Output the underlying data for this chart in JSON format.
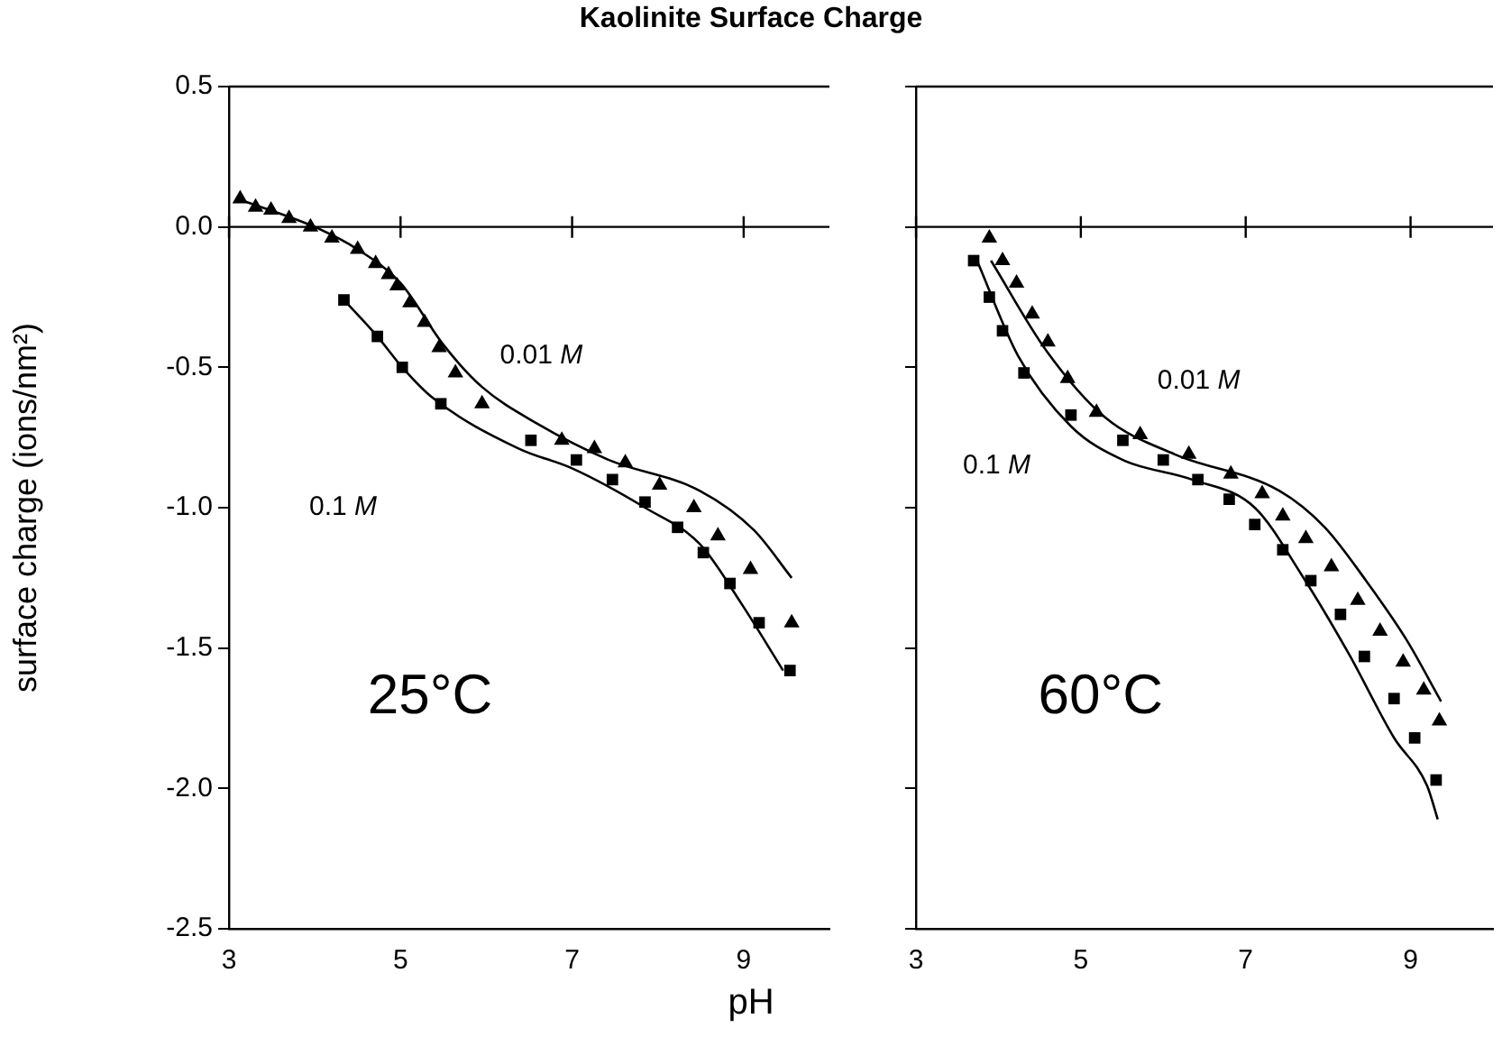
{
  "chart_data": [
    {
      "type": "scatter",
      "title": "Kaolinite Surface Charge",
      "xlabel": "pH",
      "ylabel": "surface charge (ions/nm²)",
      "xlim": [
        3,
        10
      ],
      "ylim": [
        -2.5,
        0.5
      ],
      "xticks": [
        3,
        5,
        7,
        9
      ],
      "yticks": [
        0.5,
        {
          "value": 0,
          "label": "0.0"
        },
        -0.5,
        {
          "value": -1,
          "label": "-1.0"
        },
        -1.5,
        {
          "value": -2,
          "label": "-2.0"
        },
        -2.5
      ],
      "grid": false,
      "legend": false,
      "ref_lines": [
        {
          "axis": "y",
          "value": 0,
          "color": "#000000"
        }
      ],
      "annotations": [
        "0.01 M",
        "0.1 M",
        "25°C"
      ],
      "series": [
        {
          "type": "scatter",
          "marker": "triangle",
          "color": "#000000",
          "x": [
            3.13,
            3.31,
            3.49,
            3.7,
            3.95,
            4.2,
            4.5,
            4.71,
            4.86,
            4.96,
            5.11,
            5.28,
            5.45,
            5.64,
            5.95,
            6.88,
            7.26,
            7.62,
            8.02,
            8.42,
            8.7,
            9.08,
            9.56
          ],
          "values": [
            0.1,
            0.07,
            0.06,
            0.03,
            0.0,
            -0.04,
            -0.08,
            -0.13,
            -0.17,
            -0.21,
            -0.27,
            -0.34,
            -0.43,
            -0.52,
            -0.63,
            -0.76,
            -0.79,
            -0.84,
            -0.92,
            -1.0,
            -1.1,
            -1.22,
            -1.41
          ]
        },
        {
          "type": "scatter",
          "marker": "square",
          "color": "#000000",
          "x": [
            4.34,
            4.73,
            5.02,
            5.47,
            6.52,
            7.05,
            7.47,
            7.85,
            8.23,
            8.53,
            8.84,
            9.18,
            9.54
          ],
          "values": [
            -0.26,
            -0.39,
            -0.5,
            -0.63,
            -0.76,
            -0.83,
            -0.9,
            -0.98,
            -1.07,
            -1.16,
            -1.27,
            -1.41,
            -1.58
          ]
        },
        {
          "type": "line",
          "color": "#000000",
          "x": [
            3.1,
            4.0,
            4.5,
            5.0,
            5.5,
            5.95,
            6.59,
            7.43,
            8.49,
            9.12,
            9.56
          ],
          "values": [
            0.1,
            0.0,
            -0.08,
            -0.2,
            -0.42,
            -0.57,
            -0.7,
            -0.83,
            -0.94,
            -1.08,
            -1.25
          ]
        },
        {
          "type": "line",
          "color": "#000000",
          "x": [
            4.34,
            4.73,
            5.02,
            5.38,
            6.38,
            7.0,
            7.85,
            8.49,
            8.97,
            9.46
          ],
          "values": [
            -0.26,
            -0.39,
            -0.5,
            -0.61,
            -0.79,
            -0.86,
            -1.0,
            -1.13,
            -1.34,
            -1.58
          ]
        }
      ]
    },
    {
      "type": "scatter",
      "xlim": [
        3,
        10
      ],
      "ylim": [
        -2.5,
        0.5
      ],
      "xticks": [
        3,
        5,
        7,
        9
      ],
      "yticks": [
        0.5,
        0,
        -0.5,
        -1,
        -1.5,
        -2,
        -2.5
      ],
      "tick_labels": "x",
      "grid": false,
      "legend": false,
      "ref_lines": [
        {
          "axis": "y",
          "value": 0,
          "color": "#000000"
        }
      ],
      "annotations": [
        "0.01 M",
        "0.1 M",
        "60°C"
      ],
      "series": [
        {
          "type": "scatter",
          "marker": "triangle",
          "color": "#000000",
          "x": [
            3.89,
            4.05,
            4.22,
            4.41,
            4.6,
            4.84,
            5.19,
            5.72,
            6.31,
            6.82,
            7.2,
            7.45,
            7.73,
            8.04,
            8.36,
            8.63,
            8.91,
            9.16,
            9.35
          ],
          "values": [
            -0.04,
            -0.12,
            -0.2,
            -0.31,
            -0.41,
            -0.54,
            -0.66,
            -0.74,
            -0.81,
            -0.88,
            -0.95,
            -1.03,
            -1.11,
            -1.21,
            -1.33,
            -1.44,
            -1.55,
            -1.65,
            -1.76
          ]
        },
        {
          "type": "scatter",
          "marker": "square",
          "color": "#000000",
          "x": [
            3.7,
            3.89,
            4.05,
            4.31,
            4.88,
            5.51,
            6.0,
            6.42,
            6.8,
            7.11,
            7.45,
            7.79,
            8.15,
            8.44,
            8.8,
            9.05,
            9.31
          ],
          "values": [
            -0.12,
            -0.25,
            -0.37,
            -0.52,
            -0.67,
            -0.76,
            -0.83,
            -0.9,
            -0.97,
            -1.06,
            -1.15,
            -1.26,
            -1.38,
            -1.53,
            -1.68,
            -1.82,
            -1.97
          ]
        },
        {
          "type": "line",
          "color": "#000000",
          "x": [
            3.91,
            4.58,
            5.3,
            6.14,
            7.41,
            7.96,
            8.46,
            8.95,
            9.37
          ],
          "values": [
            -0.12,
            -0.44,
            -0.68,
            -0.81,
            -0.94,
            -1.07,
            -1.26,
            -1.47,
            -1.69
          ]
        },
        {
          "type": "line",
          "color": "#000000",
          "x": [
            3.74,
            4.24,
            4.88,
            5.51,
            6.35,
            7.11,
            7.68,
            8.25,
            8.8,
            9.2,
            9.33
          ],
          "values": [
            -0.12,
            -0.46,
            -0.71,
            -0.83,
            -0.9,
            -1.0,
            -1.24,
            -1.52,
            -1.82,
            -1.99,
            -2.11
          ]
        }
      ]
    }
  ]
}
